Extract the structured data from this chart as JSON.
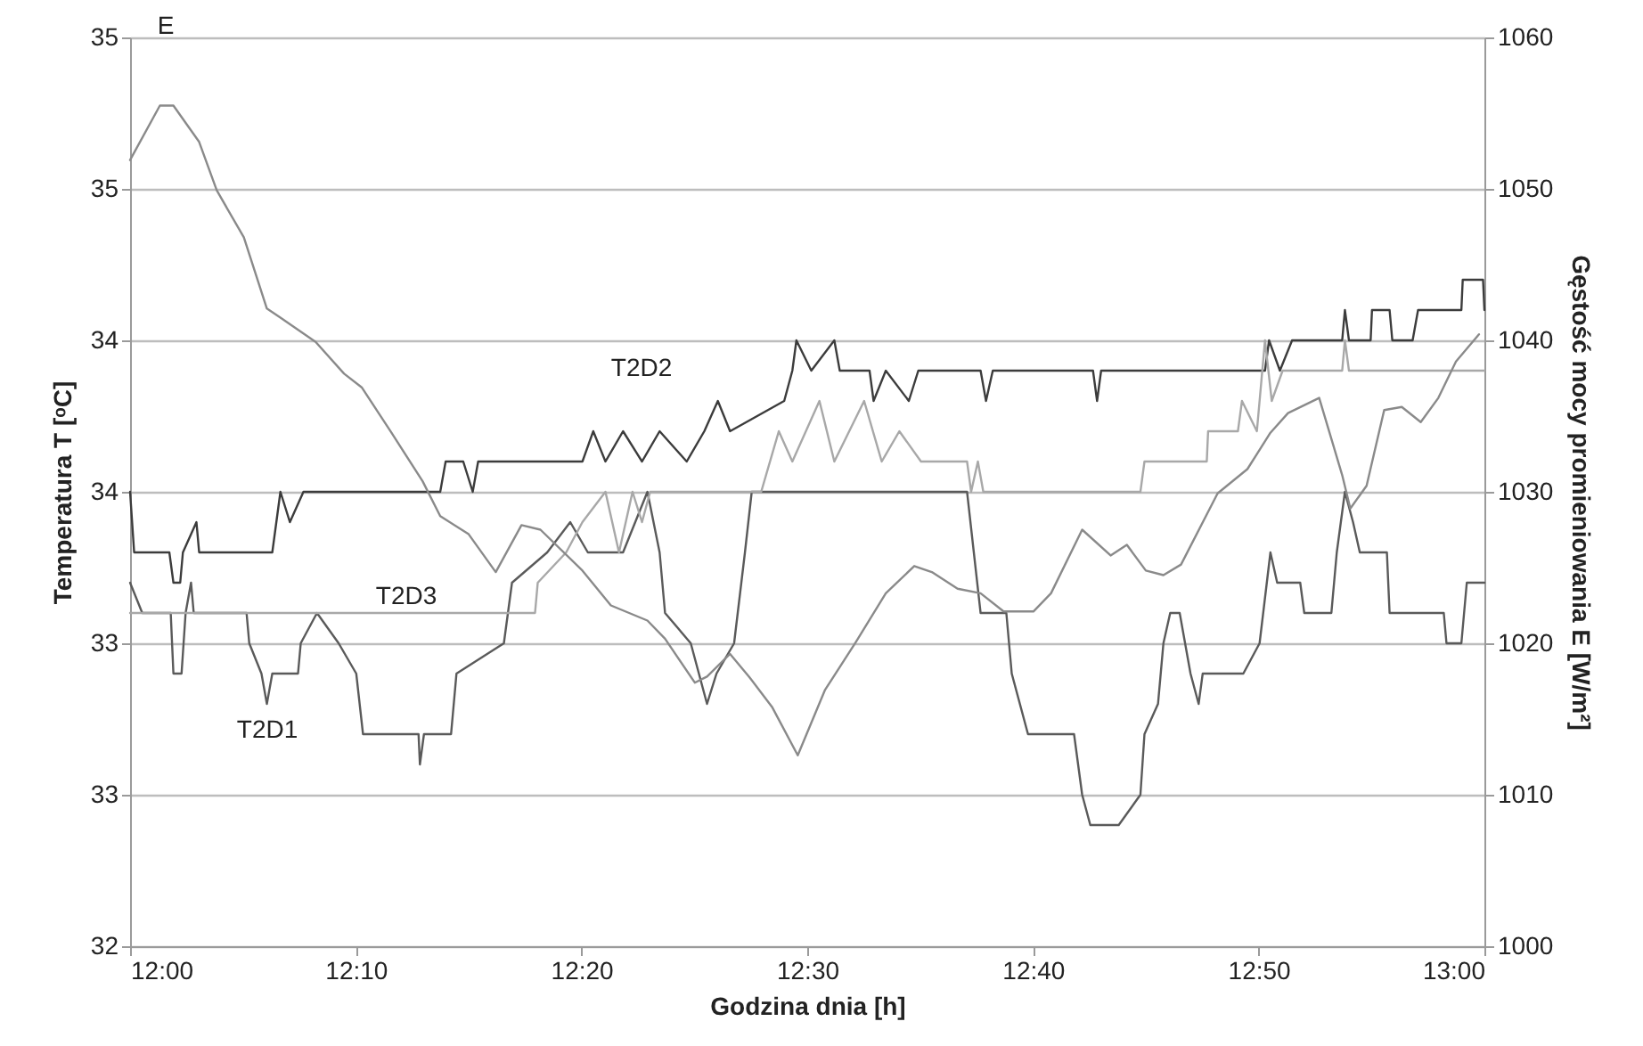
{
  "chart_data": {
    "type": "line",
    "xlabel": "Godzina dnia [h]",
    "ylabel": "Temperatura T [ᵒC]",
    "y2label": "Gęstość mocy promieniowania E [W/m²]",
    "xlim": [
      12,
      13
    ],
    "xticks": [
      {
        "value": 12,
        "label": "12:00"
      },
      {
        "value": 12.1667,
        "label": "12:10"
      },
      {
        "value": 12.3333,
        "label": "12:20"
      },
      {
        "value": 12.5,
        "label": "12:30"
      },
      {
        "value": 12.6667,
        "label": "12:40"
      },
      {
        "value": 12.8333,
        "label": "12:50"
      },
      {
        "value": 13,
        "label": "13:00"
      }
    ],
    "ylim": [
      32,
      35
    ],
    "yticks": [
      32,
      {
        "value": 32.5,
        "label": "33"
      },
      33,
      {
        "value": 33.5,
        "label": "34"
      },
      34,
      {
        "value": 34.5,
        "label": "35"
      },
      35
    ],
    "y2lim": [
      1000,
      1060
    ],
    "y2ticks": [
      1000,
      1010,
      1020,
      1030,
      1040,
      1050,
      1060
    ],
    "grid": "y",
    "legend": false,
    "series": [
      {
        "type": "line",
        "name": "T2D1",
        "color": "#5a5a5a",
        "x": [
          12.0,
          12.009,
          12.03,
          12.032,
          12.038,
          12.041,
          12.045,
          12.047,
          12.086,
          12.088,
          12.097,
          12.101,
          12.105,
          12.124,
          12.126,
          12.138,
          12.154,
          12.167,
          12.172,
          12.184,
          12.213,
          12.214,
          12.217,
          12.237,
          12.241,
          12.276,
          12.282,
          12.308,
          12.325,
          12.338,
          12.364,
          12.382,
          12.391,
          12.395,
          12.414,
          12.42,
          12.426,
          12.433,
          12.446,
          12.454,
          12.459,
          12.618,
          12.628,
          12.647,
          12.651,
          12.663,
          12.697,
          12.703,
          12.709,
          12.73,
          12.746,
          12.749,
          12.759,
          12.763,
          12.768,
          12.775,
          12.783,
          12.789,
          12.792,
          12.822,
          12.834,
          12.842,
          12.847,
          12.864,
          12.867,
          12.887,
          12.891,
          12.897,
          12.903,
          12.908,
          12.928,
          12.93,
          12.97,
          12.972,
          12.983,
          12.987,
          13.0
        ],
        "values": [
          33.2,
          33.1,
          33.1,
          32.9,
          32.9,
          33.1,
          33.2,
          33.1,
          33.1,
          33.0,
          32.9,
          32.8,
          32.9,
          32.9,
          33.0,
          33.1,
          33.0,
          32.9,
          32.7,
          32.7,
          32.7,
          32.6,
          32.7,
          32.7,
          32.9,
          33.0,
          33.2,
          33.3,
          33.4,
          33.3,
          33.3,
          33.5,
          33.3,
          33.1,
          33.0,
          32.9,
          32.8,
          32.9,
          33.0,
          33.3,
          33.5,
          33.5,
          33.1,
          33.1,
          32.9,
          32.7,
          32.7,
          32.5,
          32.4,
          32.4,
          32.5,
          32.7,
          32.8,
          33.0,
          33.1,
          33.1,
          32.9,
          32.8,
          32.9,
          32.9,
          33.0,
          33.3,
          33.2,
          33.2,
          33.1,
          33.1,
          33.3,
          33.5,
          33.4,
          33.3,
          33.3,
          33.1,
          33.1,
          33.0,
          33.0,
          33.2,
          33.2
        ]
      },
      {
        "type": "line",
        "name": "T2D2",
        "color": "#3c3c3c",
        "x": [
          12.0,
          12.003,
          12.029,
          12.032,
          12.037,
          12.039,
          12.049,
          12.051,
          12.105,
          12.111,
          12.118,
          12.128,
          12.229,
          12.233,
          12.246,
          12.253,
          12.257,
          12.334,
          12.342,
          12.351,
          12.364,
          12.378,
          12.391,
          12.411,
          12.424,
          12.434,
          12.443,
          12.483,
          12.489,
          12.492,
          12.503,
          12.52,
          12.524,
          12.546,
          12.549,
          12.558,
          12.575,
          12.582,
          12.628,
          12.632,
          12.637,
          12.711,
          12.714,
          12.717,
          12.838,
          12.841,
          12.849,
          12.858,
          12.895,
          12.897,
          12.9,
          12.916,
          12.917,
          12.93,
          12.932,
          12.947,
          12.951,
          12.983,
          12.984,
          12.999,
          13.0
        ],
        "values": [
          33.5,
          33.3,
          33.3,
          33.2,
          33.2,
          33.3,
          33.4,
          33.3,
          33.3,
          33.5,
          33.4,
          33.5,
          33.5,
          33.6,
          33.6,
          33.5,
          33.6,
          33.6,
          33.7,
          33.6,
          33.7,
          33.6,
          33.7,
          33.6,
          33.7,
          33.8,
          33.7,
          33.8,
          33.9,
          34.0,
          33.9,
          34.0,
          33.9,
          33.9,
          33.8,
          33.9,
          33.8,
          33.9,
          33.9,
          33.8,
          33.9,
          33.9,
          33.8,
          33.9,
          33.9,
          34.0,
          33.9,
          34.0,
          34.0,
          34.1,
          34.0,
          34.0,
          34.1,
          34.1,
          34.0,
          34.0,
          34.1,
          34.1,
          34.2,
          34.2,
          34.1
        ]
      },
      {
        "type": "line",
        "name": "T2D3",
        "color": "#a8a8a8",
        "x": [
          12.0,
          12.299,
          12.301,
          12.322,
          12.334,
          12.351,
          12.361,
          12.371,
          12.378,
          12.384,
          12.433,
          12.466,
          12.479,
          12.489,
          12.509,
          12.52,
          12.542,
          12.555,
          12.568,
          12.584,
          12.618,
          12.621,
          12.626,
          12.63,
          12.654,
          12.746,
          12.749,
          12.795,
          12.796,
          12.818,
          12.821,
          12.832,
          12.838,
          12.843,
          12.851,
          12.895,
          12.897,
          12.9,
          13.0
        ],
        "values": [
          33.1,
          33.1,
          33.2,
          33.3,
          33.4,
          33.5,
          33.3,
          33.5,
          33.4,
          33.5,
          33.5,
          33.5,
          33.7,
          33.6,
          33.8,
          33.6,
          33.8,
          33.6,
          33.7,
          33.6,
          33.6,
          33.5,
          33.6,
          33.5,
          33.5,
          33.5,
          33.6,
          33.6,
          33.7,
          33.7,
          33.8,
          33.7,
          34.0,
          33.8,
          33.9,
          33.9,
          34.0,
          33.9,
          33.9
        ]
      },
      {
        "type": "line",
        "name": "E",
        "axis": "y2",
        "color": "#8a8a8a",
        "x": [
          12.0,
          12.022,
          12.032,
          12.051,
          12.064,
          12.084,
          12.101,
          12.111,
          12.137,
          12.158,
          12.171,
          12.193,
          12.216,
          12.229,
          12.25,
          12.27,
          12.289,
          12.303,
          12.334,
          12.355,
          12.382,
          12.395,
          12.417,
          12.426,
          12.443,
          12.457,
          12.474,
          12.493,
          12.513,
          12.536,
          12.558,
          12.579,
          12.592,
          12.611,
          12.628,
          12.645,
          12.667,
          12.68,
          12.703,
          12.724,
          12.736,
          12.75,
          12.763,
          12.776,
          12.803,
          12.825,
          12.842,
          12.855,
          12.878,
          12.895,
          12.901,
          12.913,
          12.926,
          12.939,
          12.953,
          12.966,
          12.979,
          12.996
        ],
        "values": [
          1051.9,
          1055.5,
          1055.5,
          1053.1,
          1049.9,
          1046.8,
          1042.1,
          1041.5,
          1039.9,
          1037.8,
          1036.9,
          1033.9,
          1030.7,
          1028.4,
          1027.2,
          1024.7,
          1027.8,
          1027.5,
          1024.8,
          1022.5,
          1021.5,
          1020.3,
          1017.4,
          1017.8,
          1019.3,
          1017.8,
          1015.8,
          1012.6,
          1016.9,
          1020.1,
          1023.3,
          1025.1,
          1024.7,
          1023.6,
          1023.3,
          1022.1,
          1022.1,
          1023.3,
          1027.5,
          1025.8,
          1026.5,
          1024.8,
          1024.5,
          1025.2,
          1029.9,
          1031.5,
          1033.9,
          1035.2,
          1036.2,
          1031.1,
          1028.9,
          1030.4,
          1035.4,
          1035.6,
          1034.6,
          1036.2,
          1038.6,
          1040.4
        ]
      }
    ]
  }
}
